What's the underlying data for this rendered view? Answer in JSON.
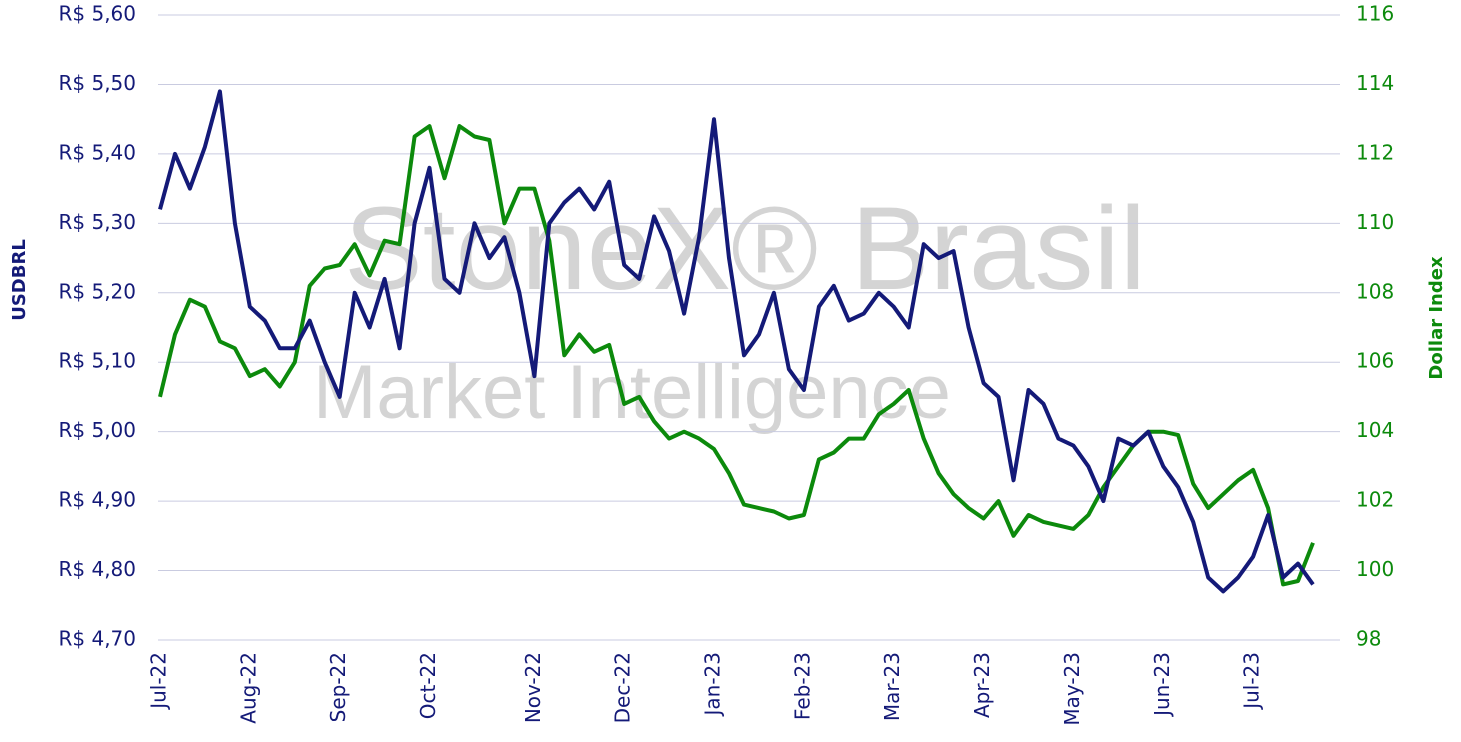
{
  "chart_data": {
    "type": "line",
    "watermark": [
      "StoneX® Brasil",
      "Market Intelligence"
    ],
    "categories": [
      "Jul-22",
      null,
      null,
      null,
      null,
      null,
      "Aug-22",
      null,
      null,
      null,
      null,
      null,
      "Sep-22",
      null,
      null,
      null,
      null,
      null,
      "Oct-22",
      null,
      null,
      null,
      null,
      null,
      null,
      "Nov-22",
      null,
      null,
      null,
      null,
      null,
      "Dec-22",
      null,
      null,
      null,
      null,
      null,
      "Jan-23",
      null,
      null,
      null,
      null,
      null,
      "Feb-23",
      null,
      null,
      null,
      null,
      null,
      "Mar-23",
      null,
      null,
      null,
      null,
      null,
      "Apr-23",
      null,
      null,
      null,
      null,
      null,
      "May-23",
      null,
      null,
      null,
      null,
      null,
      "Jun-23",
      null,
      null,
      null,
      null,
      null,
      "Jul-23",
      null,
      null,
      null,
      null
    ],
    "series": [
      {
        "name": "USDBRL",
        "color": "#141a78",
        "axis": "y",
        "values": [
          5.32,
          5.4,
          5.35,
          5.41,
          5.49,
          5.3,
          5.18,
          5.16,
          5.12,
          5.12,
          5.16,
          5.1,
          5.05,
          5.2,
          5.15,
          5.22,
          5.12,
          5.3,
          5.38,
          5.22,
          5.2,
          5.3,
          5.25,
          5.28,
          5.2,
          5.08,
          5.3,
          5.33,
          5.35,
          5.32,
          5.36,
          5.24,
          5.22,
          5.31,
          5.26,
          5.17,
          5.28,
          5.45,
          5.25,
          5.11,
          5.14,
          5.2,
          5.09,
          5.06,
          5.18,
          5.21,
          5.16,
          5.17,
          5.2,
          5.18,
          5.15,
          5.27,
          5.25,
          5.26,
          5.15,
          5.07,
          5.05,
          4.93,
          5.06,
          5.04,
          4.99,
          4.98,
          4.95,
          4.9,
          4.99,
          4.98,
          5.0,
          4.95,
          4.92,
          4.87,
          4.79,
          4.77,
          4.79,
          4.82,
          4.88,
          4.79,
          4.81,
          4.78
        ]
      },
      {
        "name": "Dollar Index",
        "color": "#0c8a0c",
        "axis": "y2",
        "values": [
          105.0,
          106.8,
          107.8,
          107.6,
          106.6,
          106.4,
          105.6,
          105.8,
          105.3,
          106.0,
          108.2,
          108.7,
          108.8,
          109.4,
          108.5,
          109.5,
          109.4,
          112.5,
          112.8,
          111.3,
          112.8,
          112.5,
          112.4,
          110.0,
          111.0,
          111.0,
          109.5,
          106.2,
          106.8,
          106.3,
          106.5,
          104.8,
          105.0,
          104.3,
          103.8,
          104.0,
          103.8,
          103.5,
          102.8,
          101.9,
          101.8,
          101.7,
          101.5,
          101.6,
          103.2,
          103.4,
          103.8,
          103.8,
          104.5,
          104.8,
          105.2,
          103.8,
          102.8,
          102.2,
          101.8,
          101.5,
          102.0,
          101.0,
          101.6,
          101.4,
          101.3,
          101.2,
          101.6,
          102.4,
          103.0,
          103.6,
          104.0,
          104.0,
          103.9,
          102.5,
          101.8,
          102.2,
          102.6,
          102.9,
          101.8,
          99.6,
          99.7,
          100.8
        ]
      }
    ],
    "ylim": [
      4.7,
      5.6
    ],
    "yticks": [
      {
        "value": 4.7,
        "label": "R$ 4,70"
      },
      {
        "value": 4.8,
        "label": "R$ 4,80"
      },
      {
        "value": 4.9,
        "label": "R$ 4,90"
      },
      {
        "value": 5.0,
        "label": "R$ 5,00"
      },
      {
        "value": 5.1,
        "label": "R$ 5,10"
      },
      {
        "value": 5.2,
        "label": "R$ 5,20"
      },
      {
        "value": 5.3,
        "label": "R$ 5,30"
      },
      {
        "value": 5.4,
        "label": "R$ 5,40"
      },
      {
        "value": 5.5,
        "label": "R$ 5,50"
      },
      {
        "value": 5.6,
        "label": "R$ 5,60"
      }
    ],
    "y2lim": [
      98,
      116
    ],
    "y2ticks": [
      98,
      100,
      102,
      104,
      106,
      108,
      110,
      112,
      114,
      116
    ],
    "grid": true
  }
}
